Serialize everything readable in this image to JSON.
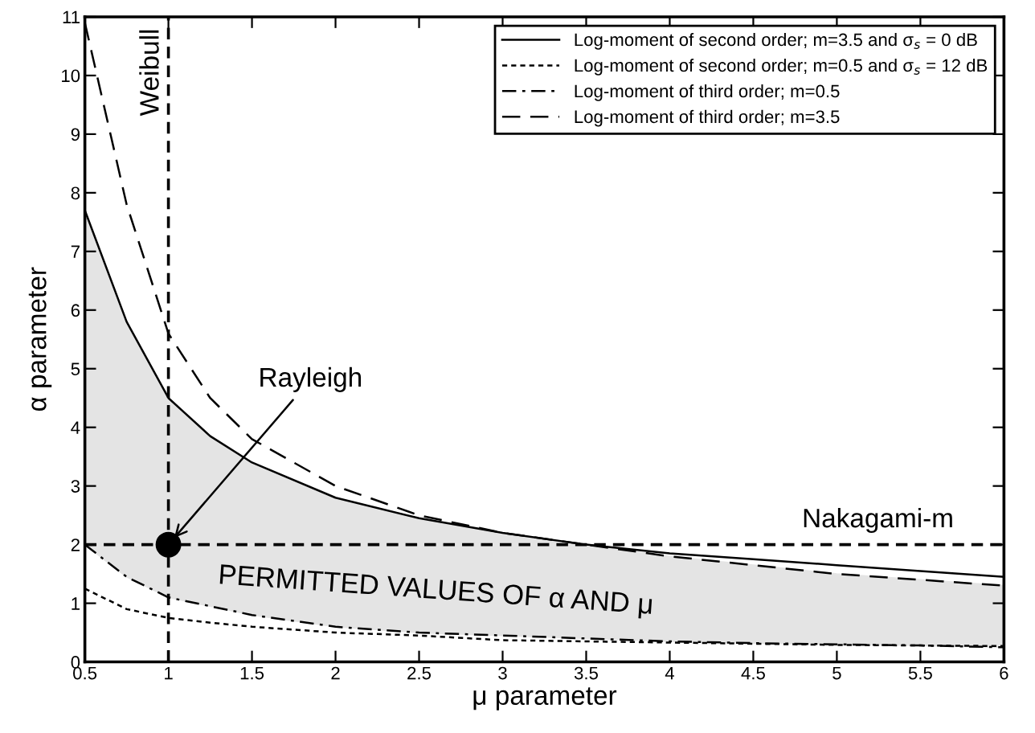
{
  "chart_data": {
    "type": "line",
    "xlabel": "μ parameter",
    "ylabel": "α parameter",
    "xlim": [
      0.5,
      6
    ],
    "ylim": [
      0,
      11
    ],
    "xticks": [
      0.5,
      1,
      1.5,
      2,
      2.5,
      3,
      3.5,
      4,
      4.5,
      5,
      5.5,
      6
    ],
    "yticks": [
      0,
      1,
      2,
      3,
      4,
      5,
      6,
      7,
      8,
      9,
      10,
      11
    ],
    "grid": false,
    "legend": "top right",
    "x": [
      0.5,
      0.75,
      1,
      1.25,
      1.5,
      2,
      2.5,
      3,
      3.5,
      4,
      4.5,
      5,
      5.5,
      6
    ],
    "series": [
      {
        "name": "Log-moment of second order; m=3.5 and σ$_{s}$ = 0 dB",
        "color": "#000000",
        "line_style": "solid",
        "values": [
          7.7,
          5.8,
          4.5,
          3.85,
          3.4,
          2.8,
          2.45,
          2.2,
          2.0,
          1.85,
          1.75,
          1.65,
          1.55,
          1.45
        ],
        "upper": [
          7.7,
          5.8,
          4.5,
          3.85,
          3.4,
          2.8,
          2.45,
          2.2,
          2.0,
          1.8,
          1.65,
          1.5,
          1.4,
          1.3
        ],
        "lower": [
          2.0,
          1.45,
          1.1,
          0.95,
          0.8,
          0.6,
          0.5,
          0.45,
          0.4,
          0.35,
          0.32,
          0.3,
          0.28,
          0.25
        ]
      },
      {
        "name": "Log-moment of second order; m=0.5 and σ$_{s}$ = 12 dB",
        "color": "#000000",
        "line_style": "dotted",
        "values": [
          1.25,
          0.9,
          0.75,
          0.67,
          0.6,
          0.5,
          0.45,
          0.37,
          0.35,
          0.33,
          0.31,
          0.29,
          0.28,
          0.27
        ]
      },
      {
        "name": "Log-moment of third order; m=0.5",
        "color": "#000000",
        "line_style": "dashdot",
        "values": [
          2.0,
          1.45,
          1.1,
          0.95,
          0.8,
          0.6,
          0.5,
          0.45,
          0.4,
          0.35,
          0.32,
          0.3,
          0.28,
          0.25
        ]
      },
      {
        "name": "Log-moment of third order; m=3.5",
        "color": "#000000",
        "line_style": "dashed",
        "values": [
          10.9,
          7.8,
          5.6,
          4.5,
          3.8,
          3.0,
          2.5,
          2.2,
          2.0,
          1.8,
          1.65,
          1.5,
          1.4,
          1.3
        ]
      },
      {
        "type": "scatter",
        "marker": "circle",
        "color": "#000000",
        "x": [
          1
        ],
        "values": [
          2
        ]
      }
    ],
    "ref_lines": [
      {
        "axis": "x",
        "value": 1,
        "label": "Weibull",
        "color": "#000000",
        "line_style": "dashed"
      },
      {
        "axis": "y",
        "value": 2,
        "label": "Nakagami-m",
        "color": "#000000",
        "line_style": "dashed"
      }
    ],
    "annotations": [
      {
        "text": "Rayleigh",
        "x": 1,
        "y": 2
      },
      "PERMITTED VALUES OF α AND μ"
    ]
  }
}
